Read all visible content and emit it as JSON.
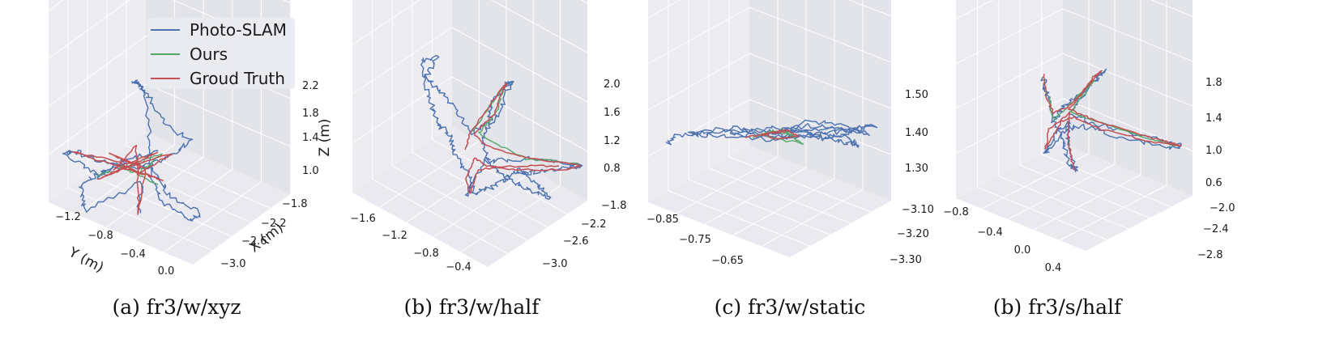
{
  "legend": {
    "entries": [
      {
        "label": "Photo-SLAM",
        "color": "#4c72b0"
      },
      {
        "label": "Ours",
        "color": "#55a868"
      },
      {
        "label": "Groud Truth",
        "color": "#c44e52"
      }
    ]
  },
  "chart_data": [
    {
      "type": "line",
      "caption": "(a) fr3/w/xyz",
      "xlabel": "X (m)",
      "ylabel": "Y (m)",
      "zlabel": "Z (m)",
      "x_ticks": [
        "−1.8",
        "−2.2",
        "−2.6",
        "−3.0"
      ],
      "y_ticks": [
        "−1.2",
        "−0.8",
        "−0.4",
        "0.0"
      ],
      "z_ticks": [
        "1.0",
        "1.4",
        "1.8",
        "2.2"
      ],
      "series": [
        "Photo-SLAM",
        "Ours",
        "Groud Truth"
      ]
    },
    {
      "type": "line",
      "caption": "(b) fr3/w/half",
      "xlabel": "",
      "ylabel": "",
      "zlabel": "",
      "x_ticks": [
        "−1.8",
        "−2.2",
        "−2.6",
        "−3.0"
      ],
      "y_ticks": [
        "−1.6",
        "−1.2",
        "−0.8",
        "−0.4"
      ],
      "z_ticks": [
        "0.8",
        "1.2",
        "1.6",
        "2.0"
      ],
      "series": [
        "Photo-SLAM",
        "Ours",
        "Groud Truth"
      ]
    },
    {
      "type": "line",
      "caption": "(c) fr3/w/static",
      "xlabel": "",
      "ylabel": "",
      "zlabel": "",
      "x_ticks": [
        "−3.10",
        "−3.20",
        "−3.30"
      ],
      "y_ticks": [
        "−0.85",
        "−0.75",
        "−0.65"
      ],
      "z_ticks": [
        "1.30",
        "1.40",
        "1.50"
      ],
      "series": [
        "Photo-SLAM",
        "Ours",
        "Groud Truth"
      ]
    },
    {
      "type": "line",
      "caption": "(b) fr3/s/half",
      "xlabel": "",
      "ylabel": "",
      "zlabel": "",
      "x_ticks": [
        "−2.0",
        "−2.4",
        "−2.8"
      ],
      "y_ticks": [
        "−0.8",
        "−0.4",
        "0.0",
        "0.4"
      ],
      "z_ticks": [
        "0.6",
        "1.0",
        "1.4",
        "1.8"
      ],
      "series": [
        "Photo-SLAM",
        "Ours",
        "Groud Truth"
      ]
    }
  ]
}
